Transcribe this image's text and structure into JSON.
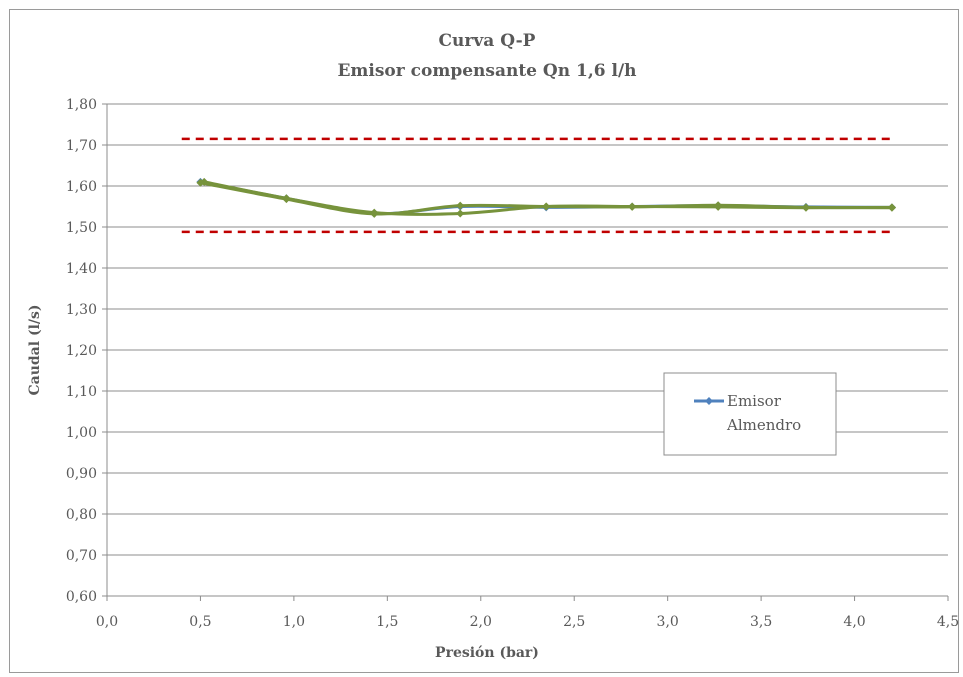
{
  "chart_data": {
    "type": "line",
    "title": "Curva Q-P",
    "subtitle": "Emisor compensante Qn 1,6 l/h",
    "xlabel": "Presión (bar)",
    "ylabel": "Caudal (l/s)",
    "xlim": [
      0.0,
      4.5
    ],
    "ylim": [
      0.6,
      1.8
    ],
    "x_ticks": [
      0.0,
      0.5,
      1.0,
      1.5,
      2.0,
      2.5,
      3.0,
      3.5,
      4.0,
      4.5
    ],
    "y_ticks": [
      0.6,
      0.7,
      0.8,
      0.9,
      1.0,
      1.1,
      1.2,
      1.3,
      1.4,
      1.5,
      1.6,
      1.7,
      1.8
    ],
    "x_tick_labels": [
      "0,0",
      "0,5",
      "1,0",
      "1,5",
      "2,0",
      "2,5",
      "3,0",
      "3,5",
      "4,0",
      "4,5"
    ],
    "y_tick_labels": [
      "0,60",
      "0,70",
      "0,80",
      "0,90",
      "1,00",
      "1,10",
      "1,20",
      "1,30",
      "1,40",
      "1,50",
      "1,60",
      "1,70",
      "1,80"
    ],
    "grid": "horizontal",
    "legend_position": "right",
    "legend": {
      "line1": "Emisor",
      "line2": "Almendro"
    },
    "series": [
      {
        "name": "Emisor Almendro",
        "color": "#4f81bd",
        "x": [
          0.5,
          0.96,
          1.43,
          1.89,
          2.35,
          2.81,
          3.27,
          3.74,
          4.2
        ],
        "y": [
          1.61,
          1.57,
          1.533,
          1.55,
          1.548,
          1.55,
          1.552,
          1.549,
          1.548
        ]
      },
      {
        "color": "#77933c",
        "x": [
          0.52,
          0.96,
          1.43,
          1.89,
          2.35,
          2.81,
          3.27,
          3.74,
          4.2
        ],
        "y": [
          1.61,
          1.57,
          1.535,
          1.533,
          1.55,
          1.55,
          1.549,
          1.547,
          1.548
        ]
      },
      {
        "color": "#77933c",
        "x": [
          0.5,
          0.96,
          1.43,
          1.89,
          2.35,
          2.81,
          3.27,
          3.74,
          4.2
        ],
        "y": [
          1.608,
          1.568,
          1.532,
          1.552,
          1.55,
          1.549,
          1.553,
          1.548,
          1.547
        ]
      }
    ],
    "reference_lines": [
      {
        "y": 1.715,
        "x_range": [
          0.4,
          4.2
        ],
        "color": "#c00000",
        "style": "dashed"
      },
      {
        "y": 1.488,
        "x_range": [
          0.4,
          4.2
        ],
        "color": "#c00000",
        "style": "dashed"
      }
    ]
  }
}
